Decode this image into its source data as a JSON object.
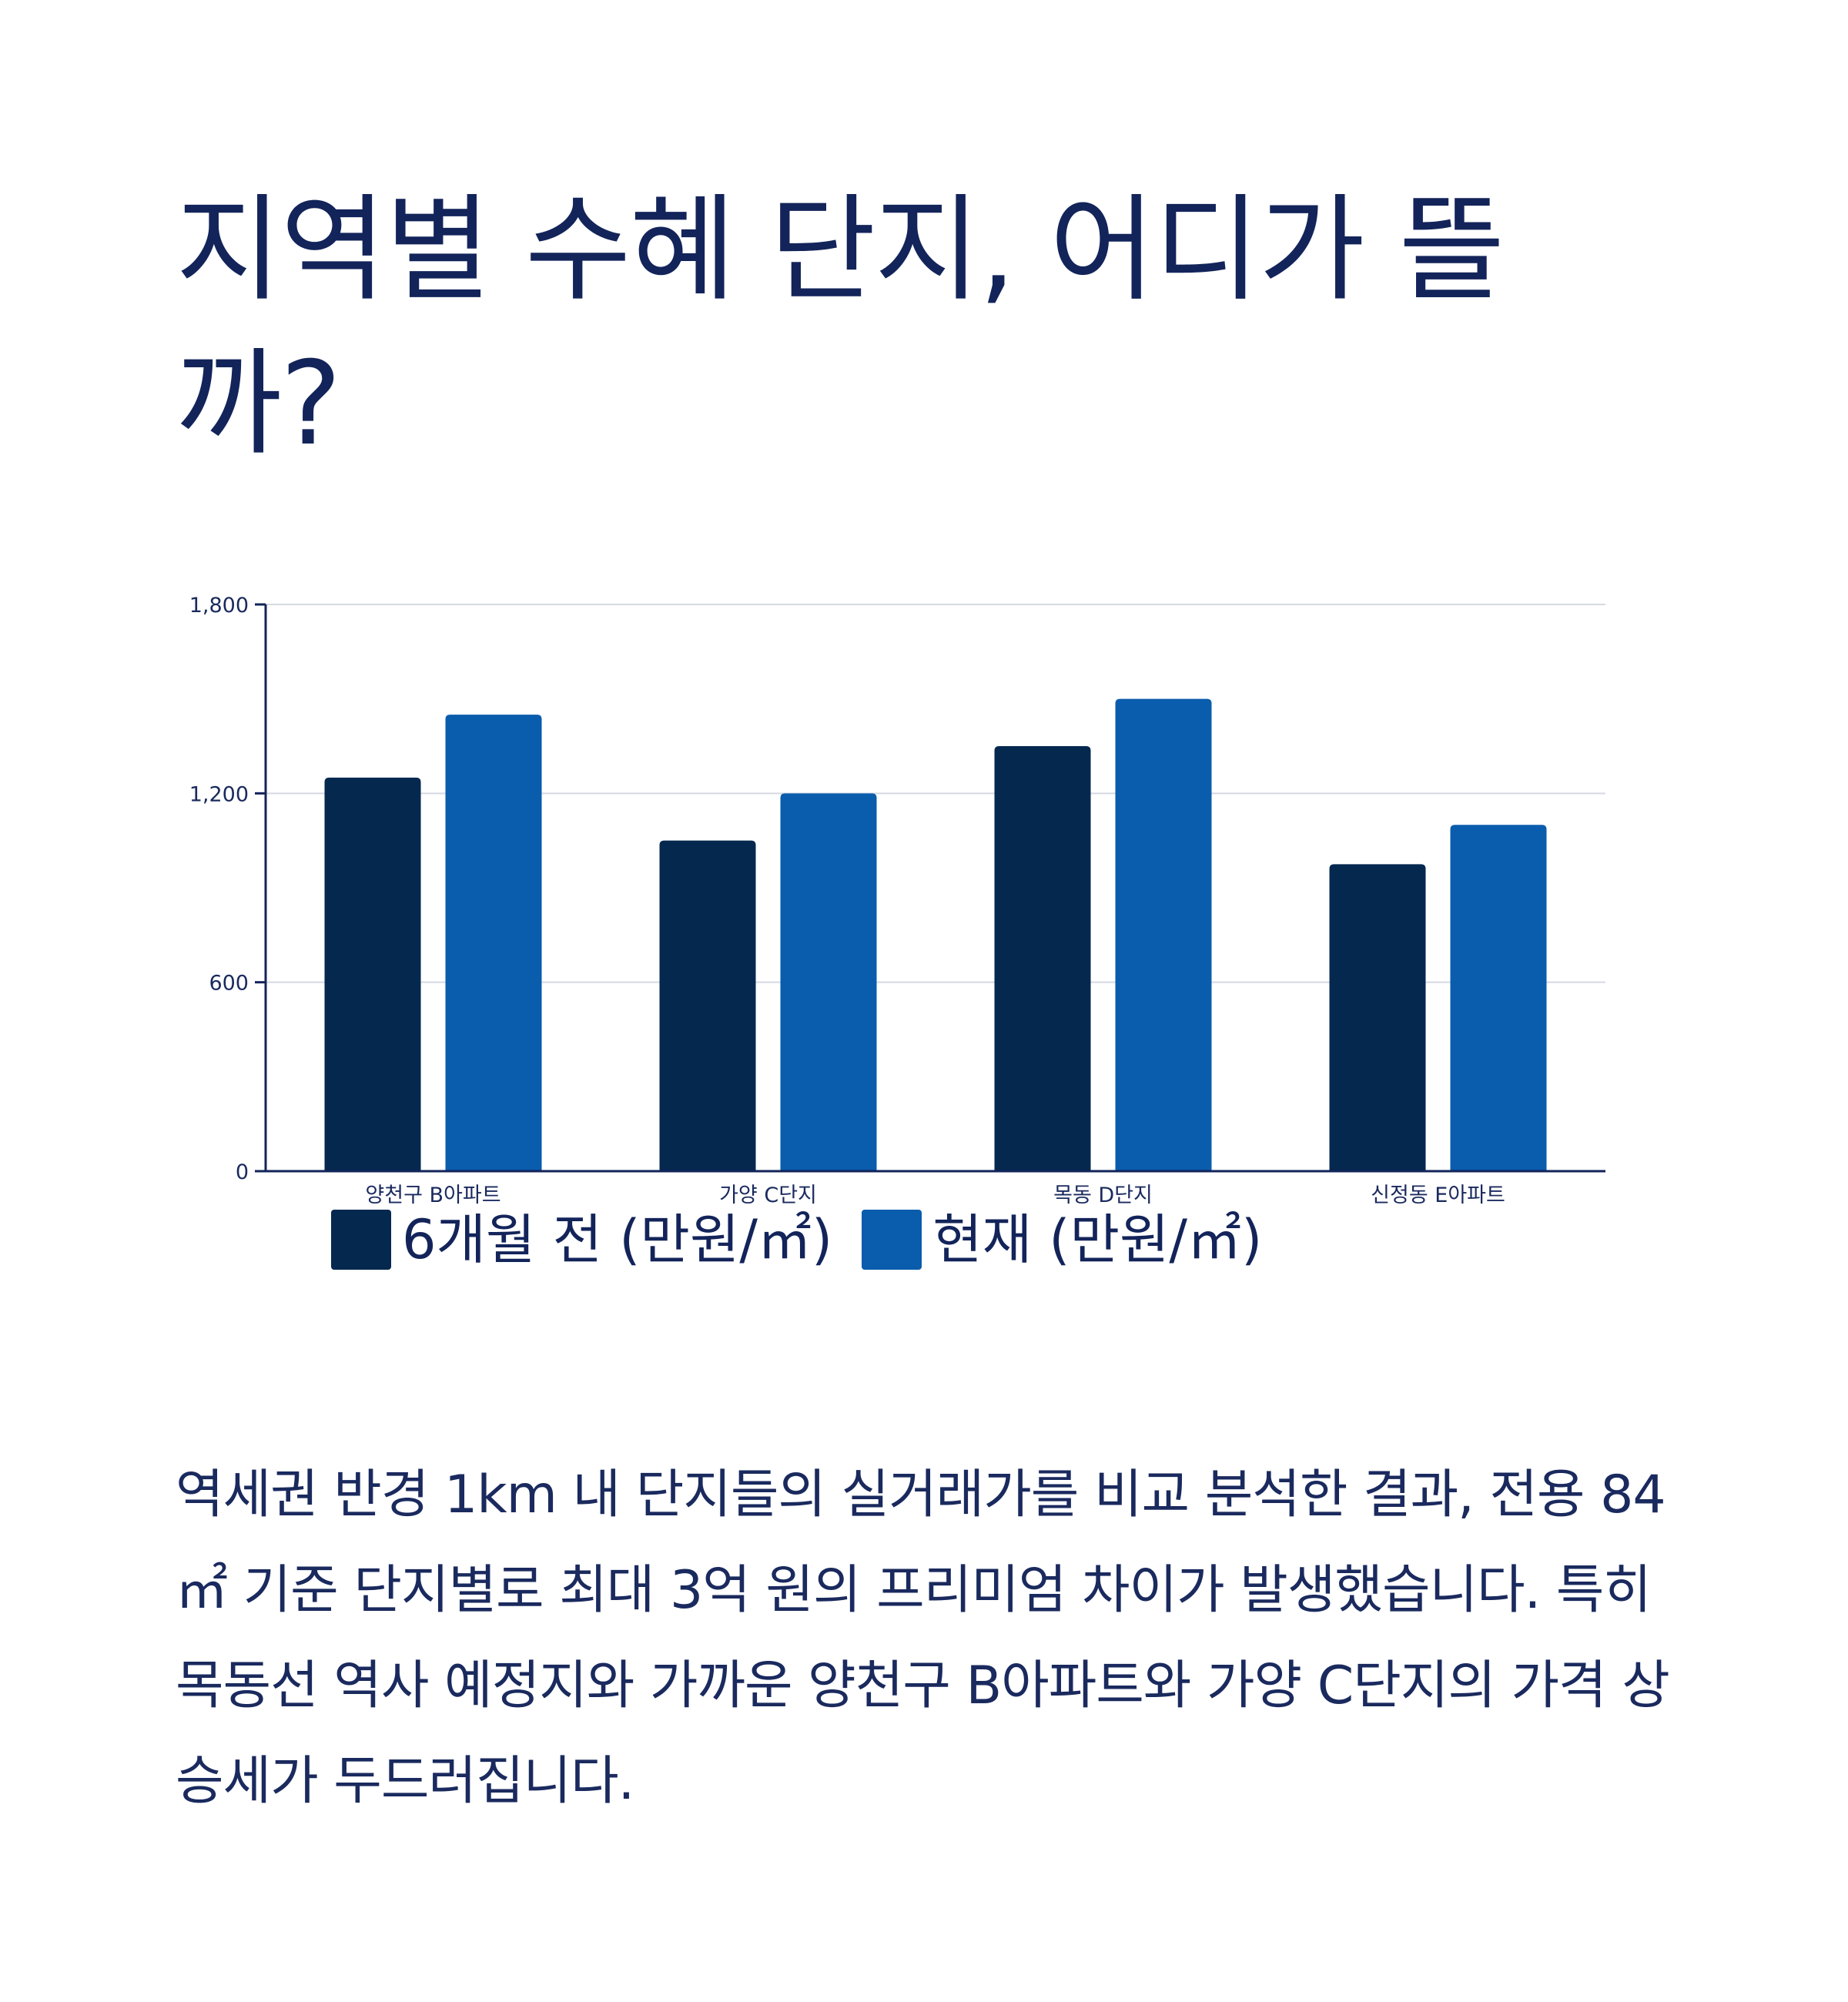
{
  "title": "지역별 수혜 단지, 어디가 뜰까?",
  "description": "역세권 반경 1km 내 단지들의 실거래가를 비교 분석한 결과, 전용 84㎡ 기준 단지별로 최대 3억 원의 프리미엄 차이가 발생했습니다. 특히 목동선 역사 예정지와 가까운 양천구 B아파트와 가양 C단지의 가격 상승세가 두드러집니다.",
  "colors": {
    "series_before": "#05284f",
    "series_now": "#0a5cad",
    "axis": "#13245a",
    "grid": "#d5d9e2"
  },
  "chart_data": {
    "type": "bar",
    "categories": [
      "양천구 B아파트",
      "가양 C단지",
      "목동 D단지",
      "신정동 E아파트"
    ],
    "series": [
      {
        "name": "6개월 전 (만원/㎡)",
        "values": [
          1250,
          1050,
          1350,
          975
        ]
      },
      {
        "name": "현재 (만원/㎡)",
        "values": [
          1450,
          1200,
          1500,
          1100
        ]
      }
    ],
    "ylim": [
      0,
      1800
    ],
    "yticks": [
      0,
      600,
      1200,
      1800
    ],
    "ytick_labels": [
      "0",
      "600",
      "1,200",
      "1,800"
    ],
    "grid": true,
    "legend_position": "bottom"
  }
}
